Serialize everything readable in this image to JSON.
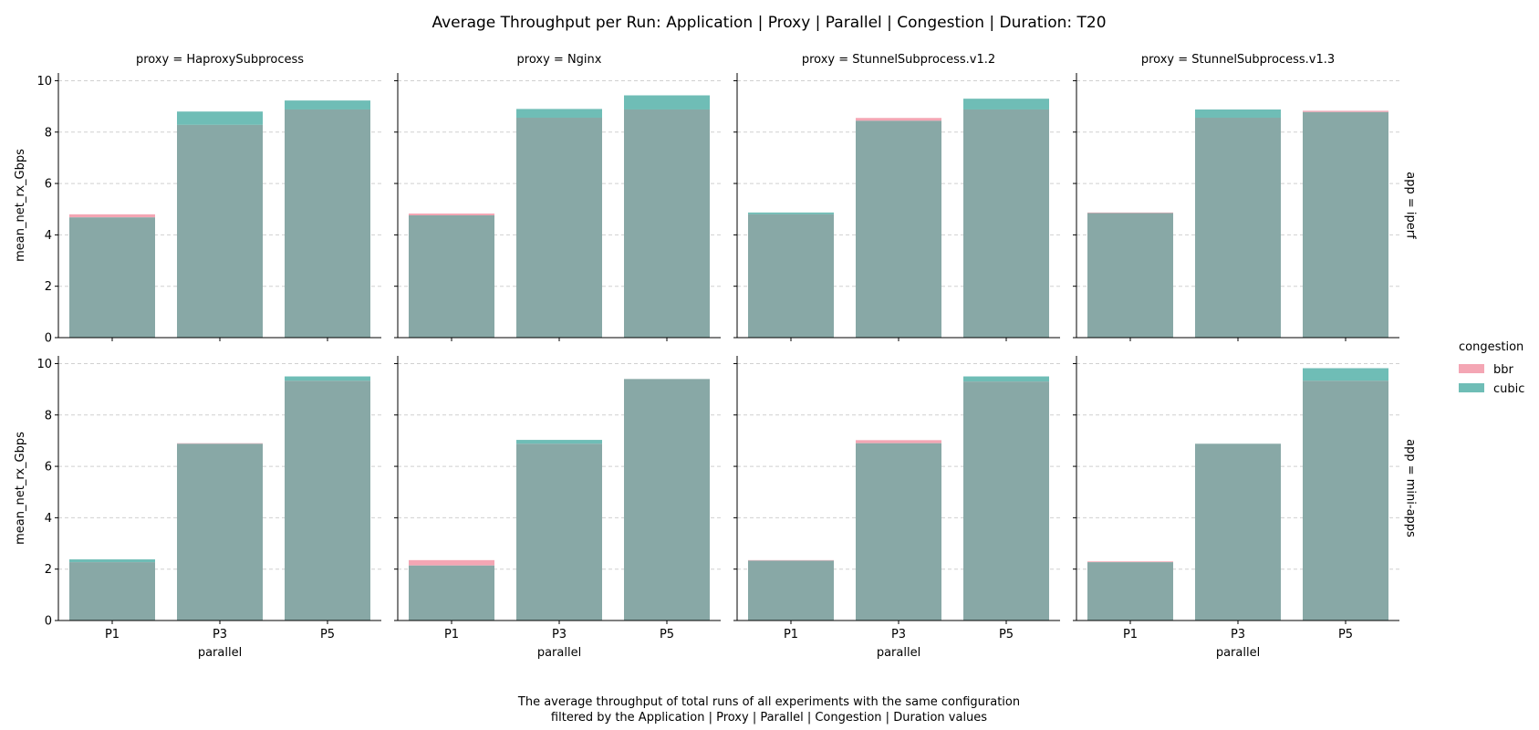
{
  "title": "Average Throughput per Run: Application | Proxy | Parallel | Congestion | Duration: T20",
  "caption_lines": [
    "The average throughput of total runs of all experiments with the same configuration",
    "filtered by the Application | Proxy | Parallel | Congestion | Duration values"
  ],
  "colors": {
    "bbr": "#f4a6b4",
    "cubic": "#6fbdb6",
    "overlap": "#88a8a6"
  },
  "chart_data": {
    "type": "bar",
    "xlabel": "parallel",
    "ylabel": "mean_net_rx_Gbps",
    "categories": [
      "P1",
      "P3",
      "P5"
    ],
    "ylim": [
      0,
      10.3
    ],
    "yticks": [
      0,
      2,
      4,
      6,
      8,
      10
    ],
    "grid": true,
    "legend": {
      "title": "congestion",
      "position": "right",
      "entries": [
        "bbr",
        "cubic"
      ]
    },
    "rows": [
      "app = iperf",
      "app = mini-apps"
    ],
    "cols": [
      "proxy = HaproxySubprocess",
      "proxy = Nginx",
      "proxy = StunnelSubprocess.v1.2",
      "proxy = StunnelSubprocess.v1.3"
    ],
    "panels": [
      {
        "row": 0,
        "col": 0,
        "bbr": [
          4.8,
          8.28,
          8.88
        ],
        "cubic": [
          4.68,
          8.8,
          9.23
        ]
      },
      {
        "row": 0,
        "col": 1,
        "bbr": [
          4.83,
          8.56,
          8.88
        ],
        "cubic": [
          4.76,
          8.9,
          9.43
        ]
      },
      {
        "row": 0,
        "col": 2,
        "bbr": [
          4.8,
          8.55,
          8.88
        ],
        "cubic": [
          4.87,
          8.44,
          9.3
        ]
      },
      {
        "row": 0,
        "col": 3,
        "bbr": [
          4.87,
          8.56,
          8.83
        ],
        "cubic": [
          4.85,
          8.88,
          8.78
        ]
      },
      {
        "row": 1,
        "col": 0,
        "bbr": [
          2.27,
          6.9,
          9.33
        ],
        "cubic": [
          2.38,
          6.88,
          9.5
        ]
      },
      {
        "row": 1,
        "col": 1,
        "bbr": [
          2.35,
          6.88,
          9.4
        ],
        "cubic": [
          2.14,
          7.03,
          9.4
        ]
      },
      {
        "row": 1,
        "col": 2,
        "bbr": [
          2.35,
          7.02,
          9.3
        ],
        "cubic": [
          2.33,
          6.9,
          9.5
        ]
      },
      {
        "row": 1,
        "col": 3,
        "bbr": [
          2.3,
          6.88,
          9.33
        ],
        "cubic": [
          2.27,
          6.88,
          9.82
        ]
      }
    ]
  }
}
